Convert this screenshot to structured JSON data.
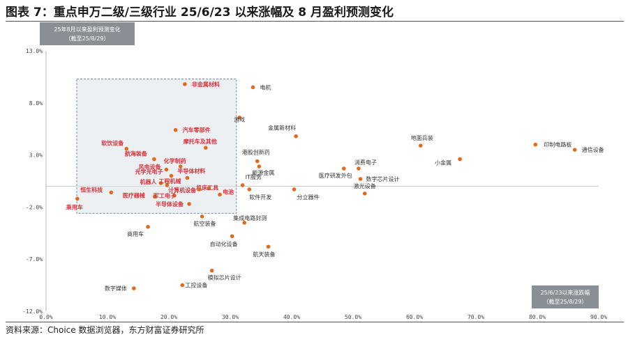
{
  "header": {
    "title": "图表 7：重点申万二级/三级行业 25/6/23 以来涨幅及 8 月盈利预测变化"
  },
  "footer": {
    "source": "资料来源：Choice 数据浏览器，东方财富证券研究所"
  },
  "colors": {
    "point": "#e06a1e",
    "label_dark": "#333333",
    "label_red": "#d8333a",
    "badge_bg": "#8a8f96",
    "highlight_fill": "#dde3ea",
    "highlight_border": "#7a8aa0"
  },
  "chart_data": {
    "type": "scatter",
    "title": "",
    "ylabel_box": {
      "line1": "25年8月以来盈利预测变化",
      "line2": "（截至25/8/29）"
    },
    "xlabel_box": {
      "line1": "25/6/23以来涨跌幅",
      "line2": "（截至25/8/29）"
    },
    "xlim": [
      0,
      90
    ],
    "ylim": [
      -12,
      13
    ],
    "x_ticks": [
      0,
      10,
      20,
      30,
      40,
      50,
      60,
      70,
      80,
      90
    ],
    "y_ticks": [
      -12,
      -7,
      -2,
      3,
      8,
      13
    ],
    "x_tick_labels": [
      "0.0%",
      "10.0%",
      "20.0%",
      "30.0%",
      "40.0%",
      "50.0%",
      "60.0%",
      "70.0%",
      "80.0%",
      "90.0%"
    ],
    "y_tick_labels": [
      "-12.0%",
      "-7.0%",
      "-2.0%",
      "3.0%",
      "8.0%",
      "13.0%"
    ],
    "highlight_region": {
      "x": [
        5,
        31
      ],
      "y": [
        -2.6,
        10.3
      ]
    },
    "points": [
      {
        "name": "非金属材料",
        "x": 22.6,
        "y": 9.8,
        "highlight": true
      },
      {
        "name": "电机",
        "x": 33.7,
        "y": 9.5,
        "highlight": false
      },
      {
        "name": "游戏",
        "x": 31.5,
        "y": 6.6,
        "highlight": false
      },
      {
        "name": "金属新材料",
        "x": 40.7,
        "y": 4.8,
        "highlight": false
      },
      {
        "name": "汽车零部件",
        "x": 21.1,
        "y": 5.4,
        "highlight": true
      },
      {
        "name": "摩托车及其他",
        "x": 26.0,
        "y": 3.7,
        "highlight": true
      },
      {
        "name": "地面兵装",
        "x": 61.0,
        "y": 3.9,
        "highlight": false
      },
      {
        "name": "印制电路板",
        "x": 79.7,
        "y": 4.0,
        "highlight": false
      },
      {
        "name": "通信设备",
        "x": 86.1,
        "y": 3.5,
        "highlight": false
      },
      {
        "name": "软饮设备",
        "x": 13.1,
        "y": 3.6,
        "highlight": true
      },
      {
        "name": "航海装备",
        "x": 17.6,
        "y": 2.6,
        "highlight": true
      },
      {
        "name": "港股创新药",
        "x": 34.4,
        "y": 2.4,
        "highlight": false
      },
      {
        "name": "小金属",
        "x": 67.4,
        "y": 2.6,
        "highlight": false
      },
      {
        "name": "化学制药",
        "x": 21.9,
        "y": 1.9,
        "highlight": true
      },
      {
        "name": "风电设备",
        "x": 19.6,
        "y": 1.6,
        "highlight": true
      },
      {
        "name": "光学光电子",
        "x": 20.4,
        "y": 1.0,
        "highlight": true
      },
      {
        "name": "半导体材料",
        "x": 23.0,
        "y": 0.8,
        "highlight": true
      },
      {
        "name": "能源金属",
        "x": 34.7,
        "y": 1.9,
        "highlight": false
      },
      {
        "name": "消费电子",
        "x": 50.9,
        "y": 1.7,
        "highlight": false
      },
      {
        "name": "医疗研发外包",
        "x": 48.5,
        "y": 1.7,
        "highlight": false
      },
      {
        "name": "数字芯片设计",
        "x": 51.2,
        "y": 0.7,
        "highlight": false
      },
      {
        "name": "恒生科技",
        "x": 10.6,
        "y": -0.6,
        "highlight": true
      },
      {
        "name": "机器人",
        "x": 18.7,
        "y": 0.3,
        "highlight": true
      },
      {
        "name": "工程机械",
        "x": 19.7,
        "y": 0.1,
        "highlight": true
      },
      {
        "name": "IT服务",
        "x": 32.0,
        "y": 0.1,
        "highlight": false
      },
      {
        "name": "机床工具",
        "x": 26.5,
        "y": -0.2,
        "highlight": true
      },
      {
        "name": "医疗器械",
        "x": 17.7,
        "y": -1.0,
        "highlight": true
      },
      {
        "name": "军工电子",
        "x": 20.9,
        "y": -0.9,
        "highlight": true
      },
      {
        "name": "计算机设备",
        "x": 24.9,
        "y": -0.3,
        "highlight": true
      },
      {
        "name": "电池",
        "x": 28.3,
        "y": -0.8,
        "highlight": true
      },
      {
        "name": "软件开发",
        "x": 33.1,
        "y": -0.3,
        "highlight": false
      },
      {
        "name": "分立器件",
        "x": 40.4,
        "y": -0.3,
        "highlight": false
      },
      {
        "name": "激光设备",
        "x": 51.9,
        "y": -0.7,
        "highlight": false
      },
      {
        "name": "乘用车",
        "x": 5.1,
        "y": -1.2,
        "highlight": true
      },
      {
        "name": "半导体设备",
        "x": 23.3,
        "y": -1.7,
        "highlight": true
      },
      {
        "name": "航空装备",
        "x": 25.4,
        "y": -2.9,
        "highlight": false
      },
      {
        "name": "集成电路封测",
        "x": 32.3,
        "y": -3.5,
        "highlight": false
      },
      {
        "name": "商用车",
        "x": 16.6,
        "y": -3.9,
        "highlight": false
      },
      {
        "name": "自动化设备",
        "x": 30.3,
        "y": -4.8,
        "highlight": false
      },
      {
        "name": "航天装备",
        "x": 36.2,
        "y": -5.8,
        "highlight": false
      },
      {
        "name": "模拟芯片设计",
        "x": 27.0,
        "y": -8.1,
        "highlight": false
      },
      {
        "name": "数字媒体",
        "x": 14.3,
        "y": -9.8,
        "highlight": false
      },
      {
        "name": "工控设备",
        "x": 22.2,
        "y": -9.5,
        "highlight": false
      }
    ]
  }
}
